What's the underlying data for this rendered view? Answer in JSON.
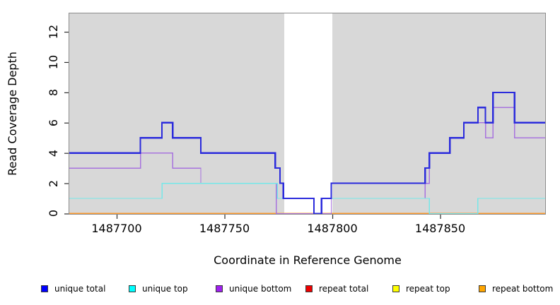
{
  "chart_data": {
    "type": "line",
    "style": "step-coverage-plot",
    "title": "",
    "xlabel": "Coordinate in Reference Genome",
    "ylabel": "Read Coverage Depth",
    "x_range": [
      1487677.7,
      1487899.0
    ],
    "y_range": [
      -0.07,
      13.26
    ],
    "x_ticks": [
      1487700,
      1487750,
      1487800,
      1487850
    ],
    "y_ticks": [
      0,
      2,
      4,
      6,
      8,
      10,
      12
    ],
    "grid": "off",
    "plot_bg_color": "#D8D8D8",
    "border_color": "#8C8C8C",
    "tick_color": "#2b2b2b",
    "mask_region": {
      "x0": 1487777.7,
      "x1": 1487800.0,
      "color": "#FFFFFF"
    },
    "series": [
      {
        "name": "repeat total",
        "color": "#DD0000",
        "width": 1.2,
        "steps": [
          [
            1487677.7,
            0
          ]
        ]
      },
      {
        "name": "repeat top",
        "color": "#FFFF00",
        "width": 1.2,
        "steps": [
          [
            1487677.7,
            0
          ]
        ]
      },
      {
        "name": "repeat bottom",
        "color": "#FF9D2E",
        "width": 1.7,
        "steps": [
          [
            1487677.7,
            0
          ]
        ]
      },
      {
        "name": "unique bottom",
        "color": "#A873DE",
        "width": 1.4,
        "steps": [
          [
            1487677.7,
            3
          ],
          [
            1487711,
            4
          ],
          [
            1487726,
            3
          ],
          [
            1487739,
            2
          ],
          [
            1487774,
            0
          ],
          [
            1487799.5,
            1
          ],
          [
            1487843,
            2
          ],
          [
            1487845,
            4
          ],
          [
            1487854.5,
            5
          ],
          [
            1487861,
            6
          ],
          [
            1487871,
            5
          ],
          [
            1487874.5,
            7
          ],
          [
            1487884.5,
            5
          ]
        ]
      },
      {
        "name": "unique top",
        "color": "#76E7E9",
        "width": 1.4,
        "steps": [
          [
            1487677.7,
            1
          ],
          [
            1487721,
            2
          ],
          [
            1487774.5,
            1
          ],
          [
            1487791.5,
            0
          ],
          [
            1487795,
            1
          ],
          [
            1487845,
            0
          ],
          [
            1487867.5,
            1
          ]
        ]
      },
      {
        "name": "unique total",
        "color": "#2B2BDC",
        "width": 2.2,
        "steps": [
          [
            1487677.7,
            4
          ],
          [
            1487711,
            5
          ],
          [
            1487721,
            6
          ],
          [
            1487726,
            5
          ],
          [
            1487739,
            4
          ],
          [
            1487773.5,
            3
          ],
          [
            1487775.7,
            2
          ],
          [
            1487777.3,
            1
          ],
          [
            1487791.5,
            0
          ],
          [
            1487795,
            1
          ],
          [
            1487799.5,
            2
          ],
          [
            1487843,
            3
          ],
          [
            1487845,
            4
          ],
          [
            1487854.5,
            5
          ],
          [
            1487861,
            6
          ],
          [
            1487867.5,
            7
          ],
          [
            1487871,
            6
          ],
          [
            1487874.5,
            8
          ],
          [
            1487884.5,
            6
          ]
        ]
      }
    ],
    "legend": [
      {
        "label": "unique total",
        "color": "#0000FF"
      },
      {
        "label": "unique top",
        "color": "#00FFFF"
      },
      {
        "label": "unique bottom",
        "color": "#A020F0"
      },
      {
        "label": "repeat total",
        "color": "#EE0000"
      },
      {
        "label": "repeat top",
        "color": "#FFFF00"
      },
      {
        "label": "repeat bottom",
        "color": "#FFA500"
      }
    ],
    "legend_position": "bottom"
  }
}
